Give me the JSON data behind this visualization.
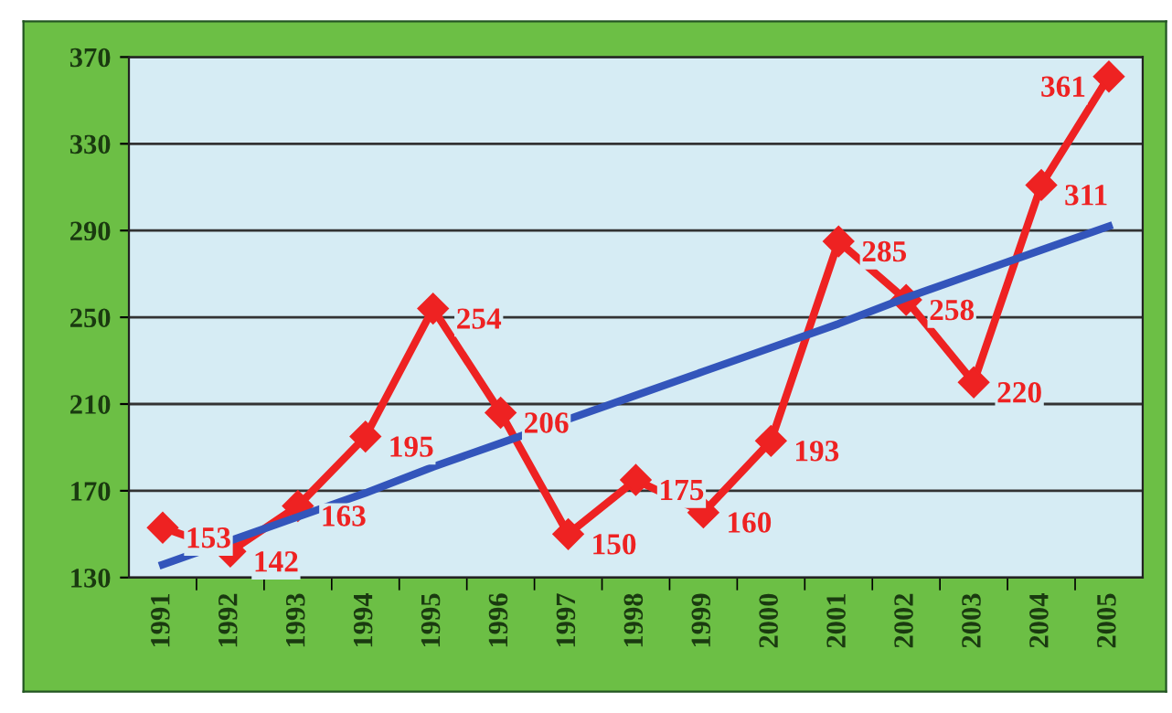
{
  "chart_data": {
    "type": "line",
    "categories": [
      "1991",
      "1992",
      "1993",
      "1994",
      "1995",
      "1996",
      "1997",
      "1998",
      "1999",
      "2000",
      "2001",
      "2002",
      "2003",
      "2004",
      "2005"
    ],
    "series": [
      {
        "color": "#ee2222",
        "values": [
          153,
          142,
          163,
          195,
          254,
          206,
          150,
          175,
          160,
          193,
          285,
          258,
          220,
          311,
          361
        ],
        "marker": "diamond",
        "data_labels": true
      },
      {
        "type": "line",
        "color": "#3355bb",
        "values": [
          136,
          147,
          158,
          169,
          181,
          192,
          203,
          214,
          225,
          236,
          247,
          259,
          270,
          281,
          292
        ],
        "marker": "none"
      }
    ],
    "ylim": [
      130,
      370
    ],
    "yticks": [
      130,
      170,
      210,
      250,
      290,
      330,
      370
    ],
    "grid": "y",
    "legend": false
  }
}
